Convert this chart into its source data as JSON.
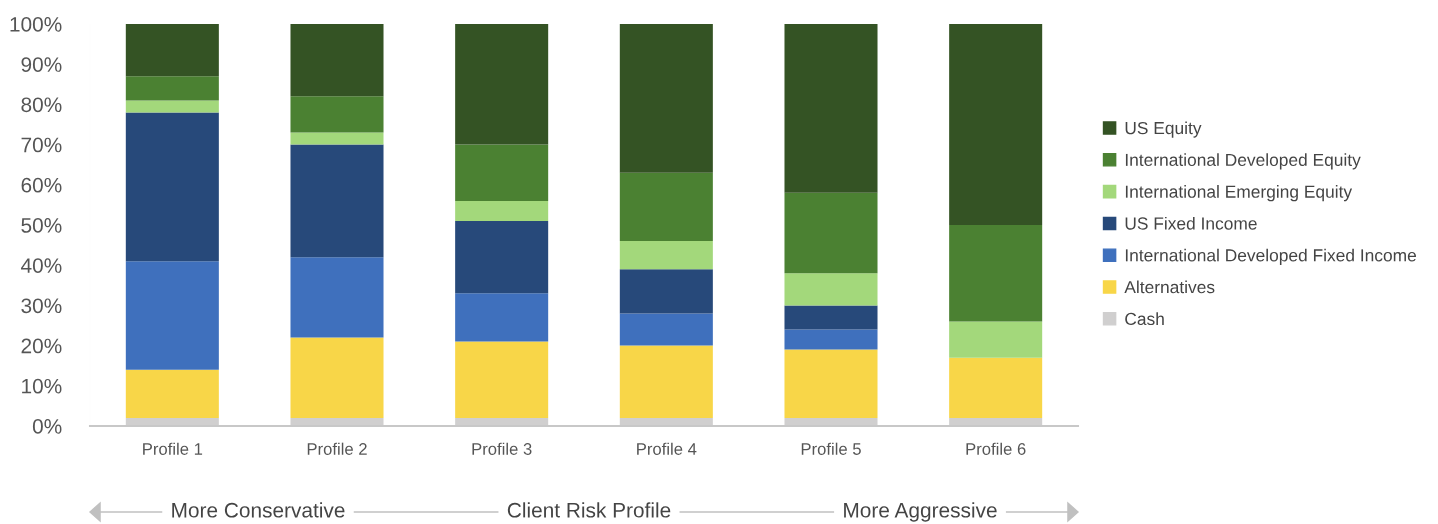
{
  "chart_data": {
    "type": "bar",
    "stacked": true,
    "categories": [
      "Profile 1",
      "Profile 2",
      "Profile 3",
      "Profile 4",
      "Profile 5",
      "Profile 6"
    ],
    "series": [
      {
        "name": "Cash",
        "color": "#d0cfcf",
        "values": [
          2,
          2,
          2,
          2,
          2,
          2
        ]
      },
      {
        "name": "Alternatives",
        "color": "#f8d648",
        "values": [
          12,
          20,
          19,
          18,
          17,
          15
        ]
      },
      {
        "name": "International Developed Fixed Income",
        "color": "#3f70bd",
        "values": [
          27,
          20,
          12,
          8,
          5,
          0
        ]
      },
      {
        "name": "US Fixed Income",
        "color": "#27497a",
        "values": [
          37,
          28,
          18,
          11,
          6,
          0
        ]
      },
      {
        "name": "International Emerging Equity",
        "color": "#a3d87b",
        "values": [
          3,
          3,
          5,
          7,
          8,
          9
        ]
      },
      {
        "name": "International Developed Equity",
        "color": "#4b8132",
        "values": [
          6,
          9,
          14,
          17,
          20,
          24
        ]
      },
      {
        "name": "US Equity",
        "color": "#345324",
        "values": [
          13,
          18,
          30,
          37,
          42,
          50
        ]
      }
    ],
    "ylim": [
      0,
      100
    ],
    "yticks": [
      {
        "value": 0,
        "label": "0%"
      },
      {
        "value": 10,
        "label": "10%"
      },
      {
        "value": 20,
        "label": "20%"
      },
      {
        "value": 30,
        "label": "30%"
      },
      {
        "value": 40,
        "label": "40%"
      },
      {
        "value": 50,
        "label": "50%"
      },
      {
        "value": 60,
        "label": "60%"
      },
      {
        "value": 70,
        "label": "70%"
      },
      {
        "value": 80,
        "label": "80%"
      },
      {
        "value": 90,
        "label": "90%"
      },
      {
        "value": 100,
        "label": "100%"
      }
    ],
    "grid": false,
    "legend": "right",
    "annotations": [
      "More Conservative",
      "Client Risk Profile",
      "More Aggressive"
    ]
  }
}
